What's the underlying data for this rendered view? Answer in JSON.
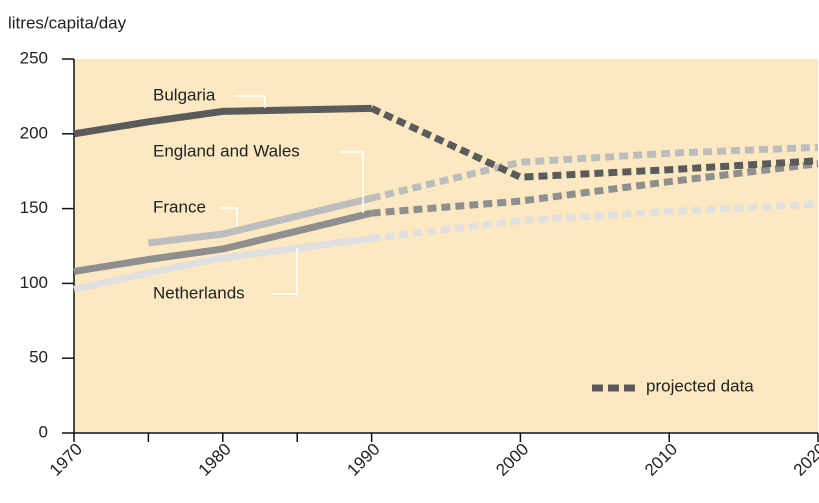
{
  "chart_data": {
    "type": "line",
    "y_label": "litres/capita/day",
    "x": [
      1970,
      1975,
      1980,
      1990,
      2000,
      2010,
      2020
    ],
    "xlim": [
      1970,
      2020
    ],
    "xticks": [
      1970,
      1980,
      1990,
      2000,
      2010,
      2020
    ],
    "xminorticks": [
      1975,
      1985
    ],
    "ylim": [
      0,
      250
    ],
    "yticks": [
      0,
      50,
      100,
      150,
      200,
      250
    ],
    "background": "#fce9c2",
    "legend": {
      "label": "projected data",
      "corner": "bottom-right"
    },
    "series": [
      {
        "name": "Bulgaria",
        "color": "#5b5b5b",
        "values": [
          200,
          208,
          215,
          217,
          null,
          null,
          null
        ],
        "projected": [
          null,
          null,
          null,
          217,
          171,
          176,
          182
        ]
      },
      {
        "name": "England and Wales",
        "color": "#8f8f8f",
        "values": [
          108,
          116,
          123,
          147,
          null,
          null,
          null
        ],
        "projected": [
          null,
          null,
          null,
          147,
          155,
          168,
          180
        ]
      },
      {
        "name": "France",
        "color": "#bdbdbd",
        "values": [
          null,
          127,
          133,
          157,
          null,
          null,
          null
        ],
        "projected": [
          null,
          null,
          null,
          157,
          181,
          187,
          191
        ]
      },
      {
        "name": "Netherlands",
        "color": "#e0e0e0",
        "values": [
          96,
          107,
          117,
          130,
          null,
          null,
          null
        ],
        "projected": [
          null,
          null,
          null,
          130,
          142,
          148,
          153
        ]
      }
    ]
  }
}
